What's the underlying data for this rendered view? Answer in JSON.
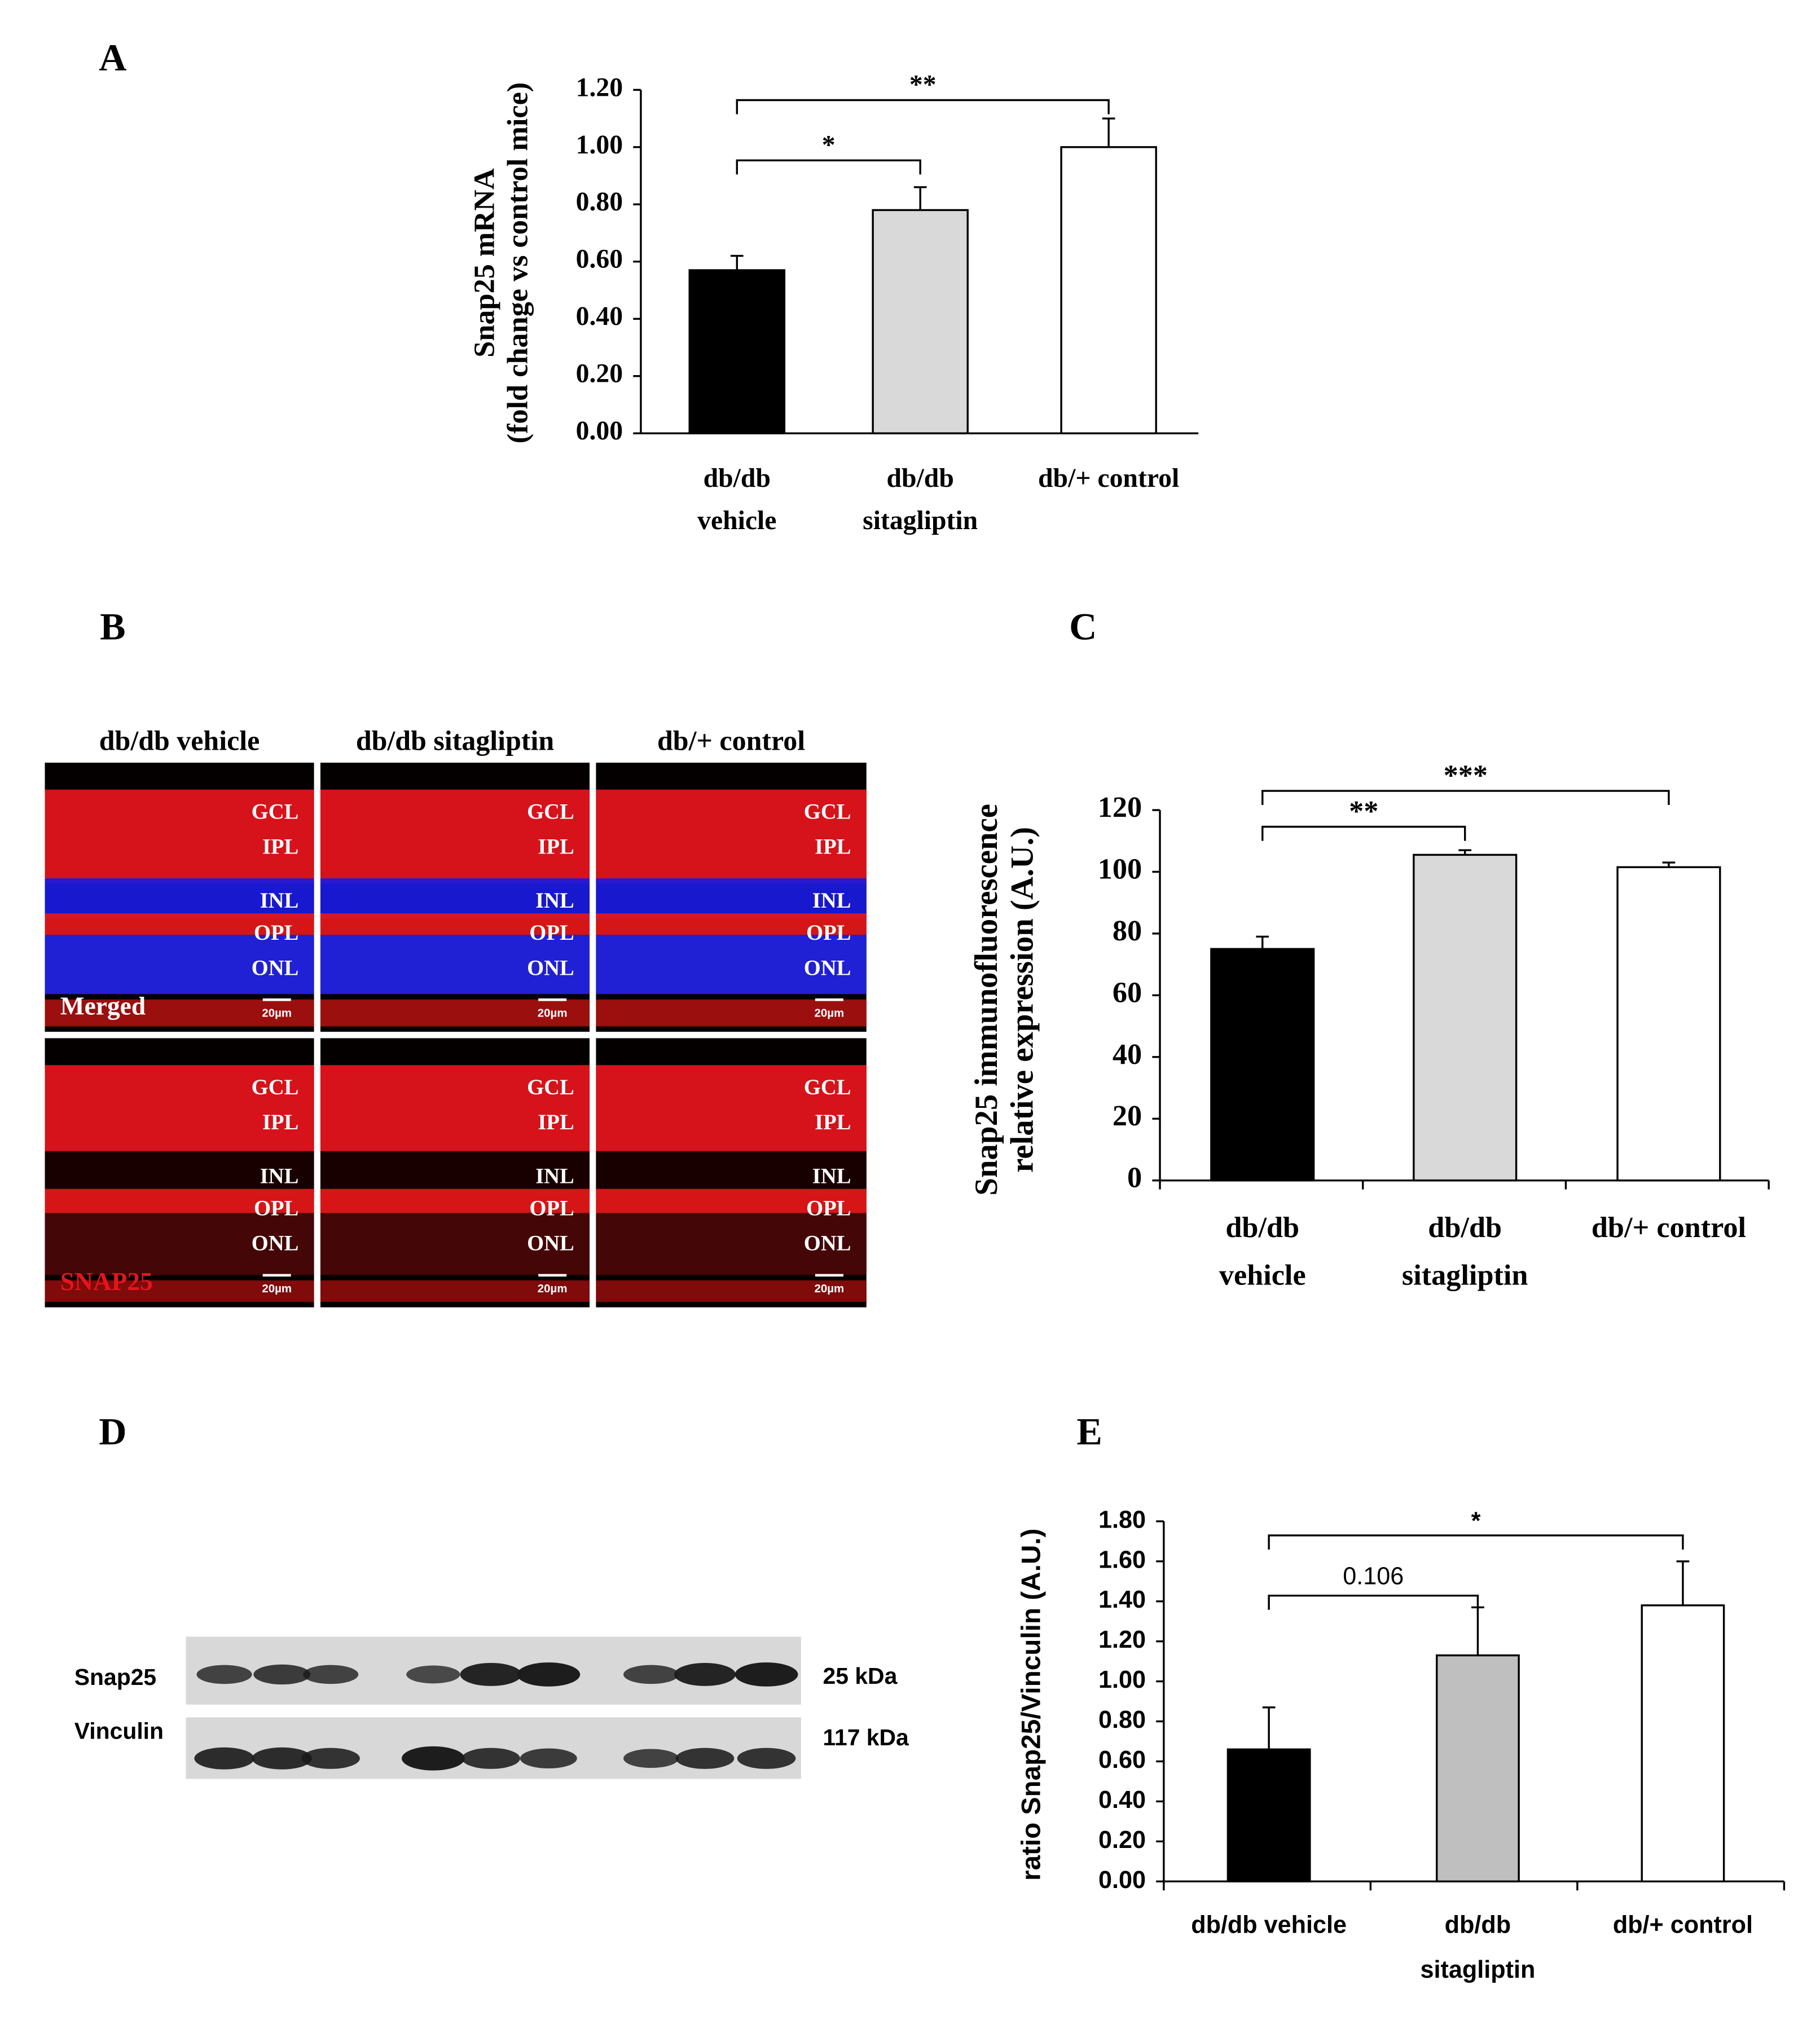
{
  "panel_labels": [
    "A",
    "B",
    "C",
    "D",
    "E"
  ],
  "chart_data": [
    {
      "type": "bar",
      "ylabel": [
        "Snap25 mRNA",
        "(fold change vs control mice)"
      ],
      "categories": [
        [
          "db/db",
          "vehicle"
        ],
        [
          "db/db",
          "sitagliptin"
        ],
        [
          "db/+ control"
        ]
      ],
      "values": [
        0.57,
        0.78,
        1.0
      ],
      "errors": [
        0.05,
        0.08,
        0.1
      ],
      "colors": [
        "#000000",
        "#d9d9d9",
        "#ffffff"
      ],
      "ylim": [
        0,
        1.2
      ],
      "yticks": [
        {
          "value": 0,
          "label": "0.00"
        },
        {
          "value": 0.2,
          "label": "0.20"
        },
        {
          "value": 0.4,
          "label": "0.40"
        },
        {
          "value": 0.6,
          "label": "0.60"
        },
        {
          "value": 0.8,
          "label": "0.80"
        },
        {
          "value": 1.0,
          "label": "1.00"
        },
        {
          "value": 1.2,
          "label": "1.20"
        }
      ],
      "brackets": [
        {
          "from": 0,
          "to": 1,
          "text": "*"
        },
        {
          "from": 0,
          "to": 2,
          "text": "**"
        }
      ]
    },
    {
      "type": "bar",
      "ylabel": [
        "Snap25 immunofluorescence",
        "relative expression  (A.U.)"
      ],
      "categories": [
        [
          "db/db",
          "vehicle"
        ],
        [
          "db/db",
          "sitagliptin"
        ],
        [
          "db/+ control"
        ]
      ],
      "values": [
        75,
        105.5,
        101.5
      ],
      "errors": [
        4,
        1.5,
        1.5
      ],
      "colors": [
        "#000000",
        "#d9d9d9",
        "#ffffff"
      ],
      "ylim": [
        0,
        120
      ],
      "yticks": [
        0,
        20,
        40,
        60,
        80,
        100,
        120
      ],
      "brackets": [
        {
          "from": 0,
          "to": 1,
          "text": "**"
        },
        {
          "from": 0,
          "to": 2,
          "text": "***"
        }
      ]
    },
    {
      "type": "bar",
      "ylabel": [
        "ratio Snap25/Vinculin  (A.U.)"
      ],
      "categories": [
        [
          "db/db vehicle"
        ],
        [
          "db/db",
          "sitagliptin"
        ],
        [
          "db/+ control"
        ]
      ],
      "values": [
        0.66,
        1.13,
        1.38
      ],
      "errors": [
        0.21,
        0.24,
        0.22
      ],
      "colors": [
        "#000000",
        "#bfbfbf",
        "#ffffff"
      ],
      "ylim": [
        0,
        1.8
      ],
      "yticks": [
        {
          "value": 0,
          "label": "0.00"
        },
        {
          "value": 0.2,
          "label": "0.20"
        },
        {
          "value": 0.4,
          "label": "0.40"
        },
        {
          "value": 0.6,
          "label": "0.60"
        },
        {
          "value": 0.8,
          "label": "0.80"
        },
        {
          "value": 1.0,
          "label": "1.00"
        },
        {
          "value": 1.2,
          "label": "1.20"
        },
        {
          "value": 1.4,
          "label": "1.40"
        },
        {
          "value": 1.6,
          "label": "1.60"
        },
        {
          "value": 1.8,
          "label": "1.80"
        }
      ],
      "brackets": [
        {
          "from": 0,
          "to": 1,
          "text": "0.106"
        },
        {
          "from": 0,
          "to": 2,
          "text": "*"
        }
      ]
    }
  ],
  "micrographs": {
    "columns": [
      "db/db vehicle",
      "db/db sitagliptin",
      "db/+ control"
    ],
    "stains": [
      "Merged",
      "SNAP25"
    ],
    "layers": [
      "GCL",
      "IPL",
      "INL",
      "OPL",
      "ONL"
    ],
    "scale_bar": "20µm"
  },
  "blot": {
    "bands": [
      {
        "name": "Snap25",
        "size": "25 kDa"
      },
      {
        "name": "Vinculin",
        "size": "117 kDa"
      }
    ]
  }
}
